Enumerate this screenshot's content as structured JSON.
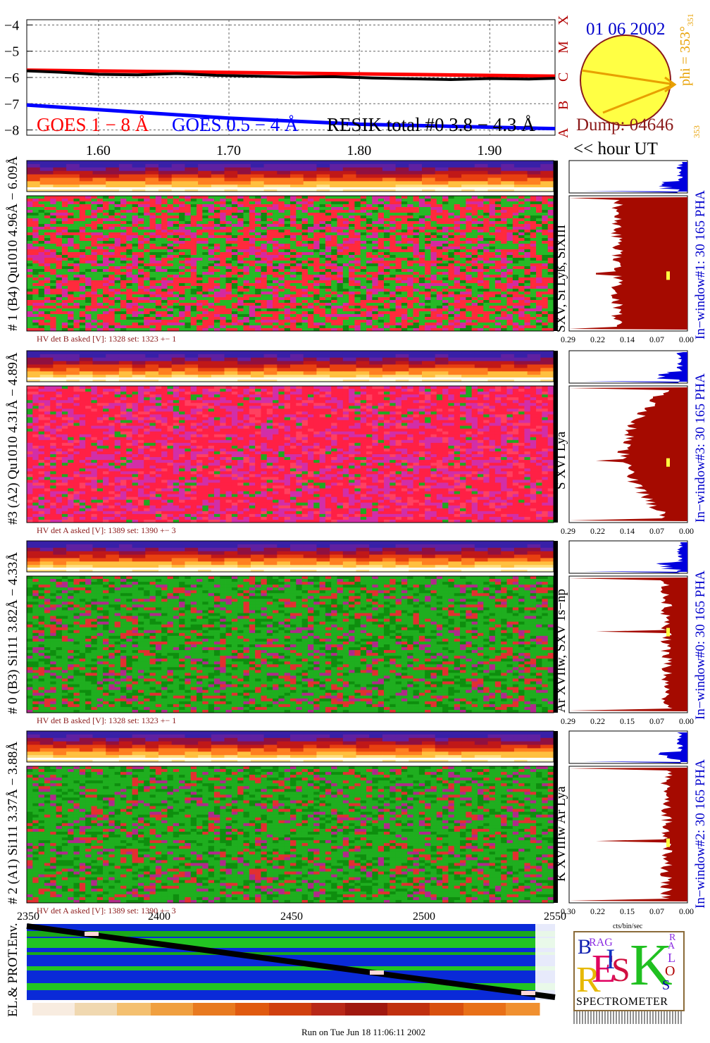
{
  "colors": {
    "goes_long": "#ff0000",
    "goes_short": "#0000ff",
    "resik": "#000000",
    "sun_fill": "#ffff44",
    "sun_edge": "#8b1a1a",
    "orange": "#e8a000",
    "hist_red": "#a50a00",
    "hist_blue": "#0000dd",
    "dump": "#8b1a1a"
  },
  "header": {
    "date": "01 06 2002",
    "dump_label": "Dump: 04646",
    "phi_label": "phi = 353°",
    "phi_sub": "351",
    "phi_left": "353",
    "hour_ut": "<< hour UT",
    "flare_classes": [
      "A",
      "B",
      "C",
      "M",
      "X"
    ]
  },
  "chart_data": [
    {
      "type": "line",
      "title": "",
      "ylabel": "",
      "xlabel": "<< hour UT",
      "ylim": [
        -8.2,
        -3.8
      ],
      "xlim": [
        1.545,
        1.95
      ],
      "yticks": [
        "−4",
        "−5",
        "−6",
        "−7",
        "−8"
      ],
      "xticks": [
        "1.60",
        "1.70",
        "1.80",
        "1.90"
      ],
      "legend": [
        "GOES 1 − 8 Å",
        "GOES 0.5 − 4 Å",
        "RESIK total #0  3.8 − 4.3 Å"
      ],
      "series": [
        {
          "name": "GOES 1 − 8 Å",
          "x": [
            1.545,
            1.95
          ],
          "y": [
            -5.72,
            -5.95
          ]
        },
        {
          "name": "GOES 0.5 − 4 Å",
          "x": [
            1.545,
            1.7,
            1.8,
            1.95
          ],
          "y": [
            -7.05,
            -7.55,
            -7.78,
            -7.95
          ]
        },
        {
          "name": "RESIK total #0  3.8 − 4.3 Å",
          "x": [
            1.545,
            1.57,
            1.6,
            1.63,
            1.66,
            1.69,
            1.72,
            1.75,
            1.78,
            1.81,
            1.84,
            1.87,
            1.9,
            1.93,
            1.95
          ],
          "y": [
            -5.75,
            -5.8,
            -5.88,
            -5.9,
            -5.85,
            -5.92,
            -5.95,
            -5.98,
            -5.97,
            -6.02,
            -6.05,
            -6.08,
            -6.04,
            -6.06,
            -6.03
          ]
        }
      ]
    }
  ],
  "detectors": [
    {
      "label": "# 1 (B4) Qu1010 4.96Å − 6.09Å",
      "lines": "SXV, Si Lyß, SiXIII",
      "hv": "HV det B asked [V]:  1328 set:  1323  +−    1",
      "pha": "In−window#1:   30 165  PHA",
      "xticks": [
        "0.29",
        "0.22",
        "0.14",
        "0.07",
        "0.00"
      ],
      "scheme": "rgm"
    },
    {
      "label": "#3 (A2) Qu1010  4.31Å − 4.89Å",
      "lines": "S XVI Lya",
      "hv": "HV det A asked [V]:  1389 set:  1390  +−    3",
      "pha": "In−window#3:   30 165  PHA",
      "xticks": [
        "0.29",
        "0.22",
        "0.14",
        "0.07",
        "0.00"
      ],
      "scheme": "rm"
    },
    {
      "label": "# 0 (B3) Si111  3.82Å − 4.33Å",
      "lines": "Ar XVIIw,  SXV 1s−np",
      "hv": "HV det B asked [V]:  1328 set:  1323  +−    1",
      "pha": "In−window#0:   30 165  PHA",
      "xticks": [
        "0.29",
        "0.22",
        "0.15",
        "0.07",
        "0.00"
      ],
      "scheme": "g"
    },
    {
      "label": "# 2 (A1) Si111  3.37Å − 3.88Å",
      "lines": "K XVIIIw  Ar Lya",
      "hv": "HV det A asked [V]:  1389 set:  1390  +−    3",
      "pha": "In−window#2:   30 165  PHA",
      "xticks": [
        "0.30",
        "0.22",
        "0.15",
        "0.07",
        "0.00"
      ],
      "scheme": "g"
    }
  ],
  "bottom": {
    "xticks": [
      "2350",
      "2400",
      "2450",
      "2500",
      "2550"
    ],
    "unit": "cts/bin/sec",
    "env_label": "EL.& PROT.Env."
  },
  "logo": {
    "brand": "SPECTROMETER",
    "letters": [
      "B",
      "RAG",
      "R",
      "E",
      "S",
      "I",
      "K",
      "S",
      "O",
      "L",
      "A",
      "R"
    ]
  },
  "footer": "Run on Tue Jun 18 11:06:11 2002"
}
